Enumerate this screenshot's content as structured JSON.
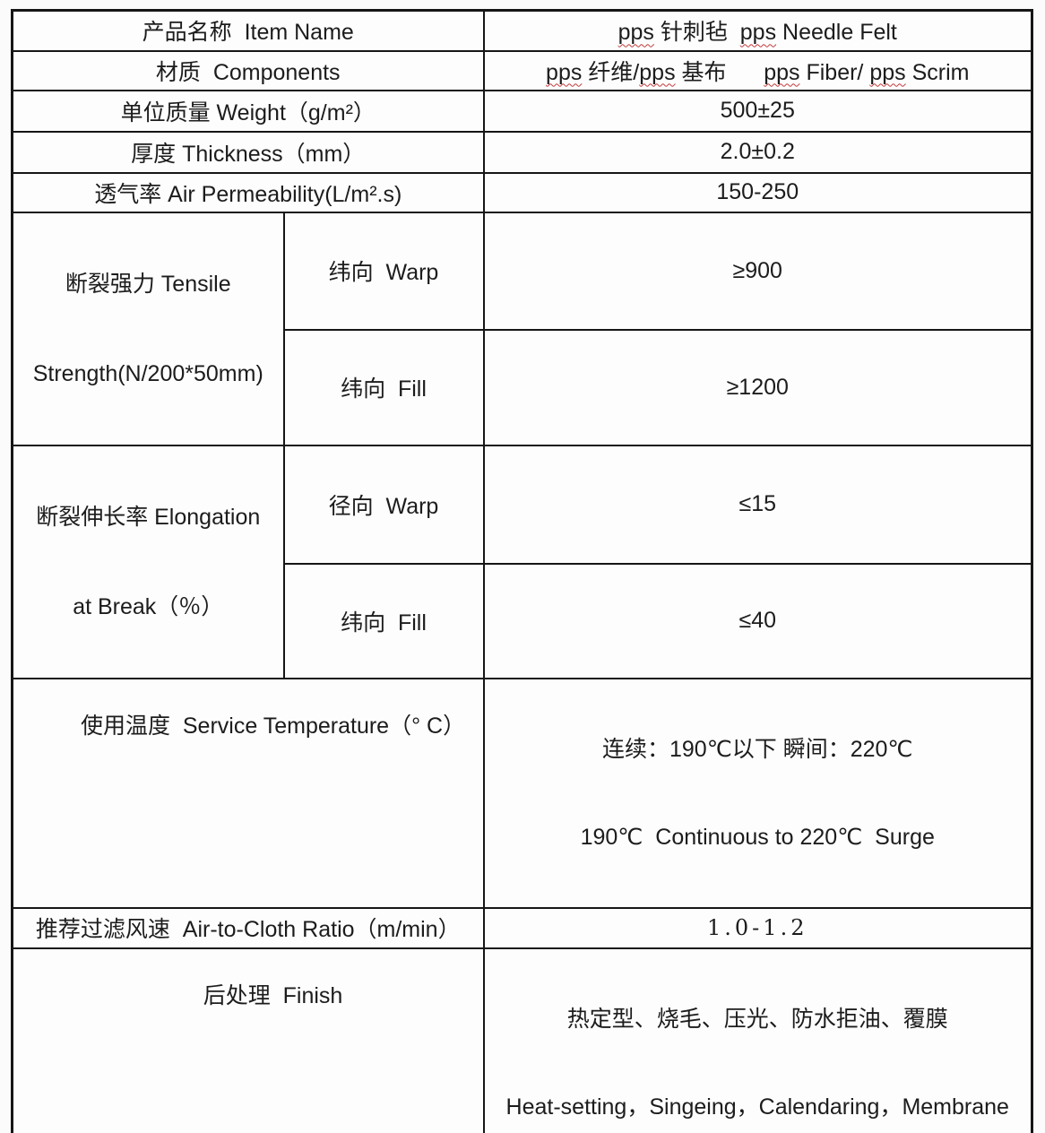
{
  "colors": {
    "page-bg": "#fbfbfb",
    "table-bg": "#fdfdfd",
    "border": "#161616",
    "text": "#1c1c1c",
    "squiggle": "#c23a3a"
  },
  "table": {
    "rows": {
      "item_name": {
        "label": "产品名称  Item Name",
        "value_segments": [
          {
            "text": "pps",
            "misspelled": true
          },
          {
            "text": " 针刺毡  ",
            "misspelled": false
          },
          {
            "text": "pps",
            "misspelled": true
          },
          {
            "text": " Needle Felt",
            "misspelled": false
          }
        ]
      },
      "components": {
        "label": "材质  Components",
        "value_segments": [
          {
            "text": "pps",
            "misspelled": true
          },
          {
            "text": " 纤维/",
            "misspelled": false
          },
          {
            "text": "pps",
            "misspelled": true
          },
          {
            "text": " 基布      ",
            "misspelled": false
          },
          {
            "text": "pps",
            "misspelled": true
          },
          {
            "text": " Fiber/ ",
            "misspelled": false
          },
          {
            "text": "pps",
            "misspelled": true
          },
          {
            "text": " Scrim",
            "misspelled": false
          }
        ]
      },
      "weight": {
        "label": "单位质量 Weight（g/m²）",
        "value": "500±25"
      },
      "thickness": {
        "label": "厚度 Thickness（mm）",
        "value": "2.0±0.2"
      },
      "air_permeability": {
        "label": "透气率 Air Permeability(L/m².s)",
        "value": "150-250"
      },
      "tensile_strength": {
        "label_line1": "断裂强力 Tensile",
        "label_line2": "Strength(N/200*50mm)",
        "warp_label": "纬向  Warp",
        "warp_value": "≥900",
        "fill_label": "纬向  Fill",
        "fill_value": "≥1200"
      },
      "elongation": {
        "label_line1": "断裂伸长率 Elongation",
        "label_line2": "at Break（％）",
        "warp_label": "径向  Warp",
        "warp_value": "≤15",
        "fill_label": "纬向  Fill",
        "fill_value": "≤40"
      },
      "service_temperature": {
        "label": "使用温度  Service Temperature（° C）",
        "value_line1": "连续：190℃以下 瞬间：220℃",
        "value_line2": "190℃  Continuous to 220℃  Surge"
      },
      "air_to_cloth_ratio": {
        "label": "推荐过滤风速  Air-to-Cloth Ratio（m/min）",
        "value": "1.0-1.2"
      },
      "finish": {
        "label": "后处理  Finish",
        "value_line1": "热定型、烧毛、压光、防水拒油、覆膜",
        "value_line2": "Heat-setting，Singeing，Calendaring，Membrane"
      }
    }
  }
}
